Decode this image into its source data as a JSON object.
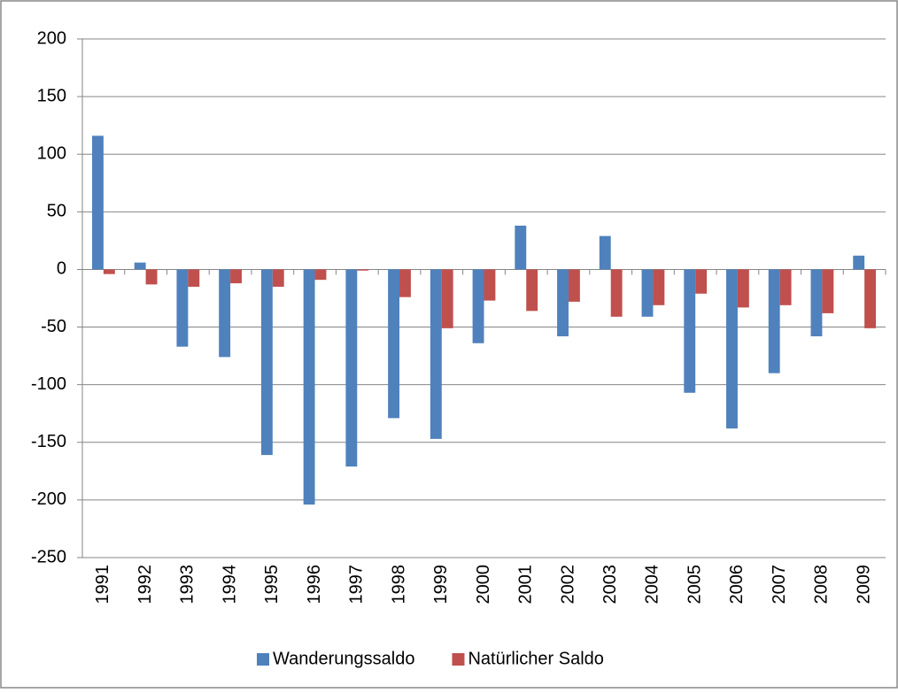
{
  "chart_data": {
    "type": "bar",
    "categories": [
      "1991",
      "1992",
      "1993",
      "1994",
      "1995",
      "1996",
      "1997",
      "1998",
      "1999",
      "2000",
      "2001",
      "2002",
      "2003",
      "2004",
      "2005",
      "2006",
      "2007",
      "2008",
      "2009"
    ],
    "series": [
      {
        "name": "Wanderungssaldo",
        "color": "#4f81bd",
        "values": [
          116,
          6,
          -67,
          -76,
          -161,
          -204,
          -171,
          -129,
          -147,
          -64,
          38,
          -58,
          29,
          -41,
          -107,
          -138,
          -90,
          -58,
          12
        ]
      },
      {
        "name": "Natürlicher Saldo",
        "color": "#c0504d",
        "values": [
          -4,
          -13,
          -15,
          -12,
          -15,
          -9,
          -1,
          -24,
          -51,
          -27,
          -36,
          -28,
          -41,
          -31,
          -21,
          -33,
          -31,
          -38,
          -51
        ]
      }
    ],
    "ylim": [
      -250,
      200
    ],
    "yticks": [
      -250,
      -200,
      -150,
      -100,
      -50,
      0,
      50,
      100,
      150,
      200
    ],
    "grid": true,
    "legend": "bottom"
  }
}
